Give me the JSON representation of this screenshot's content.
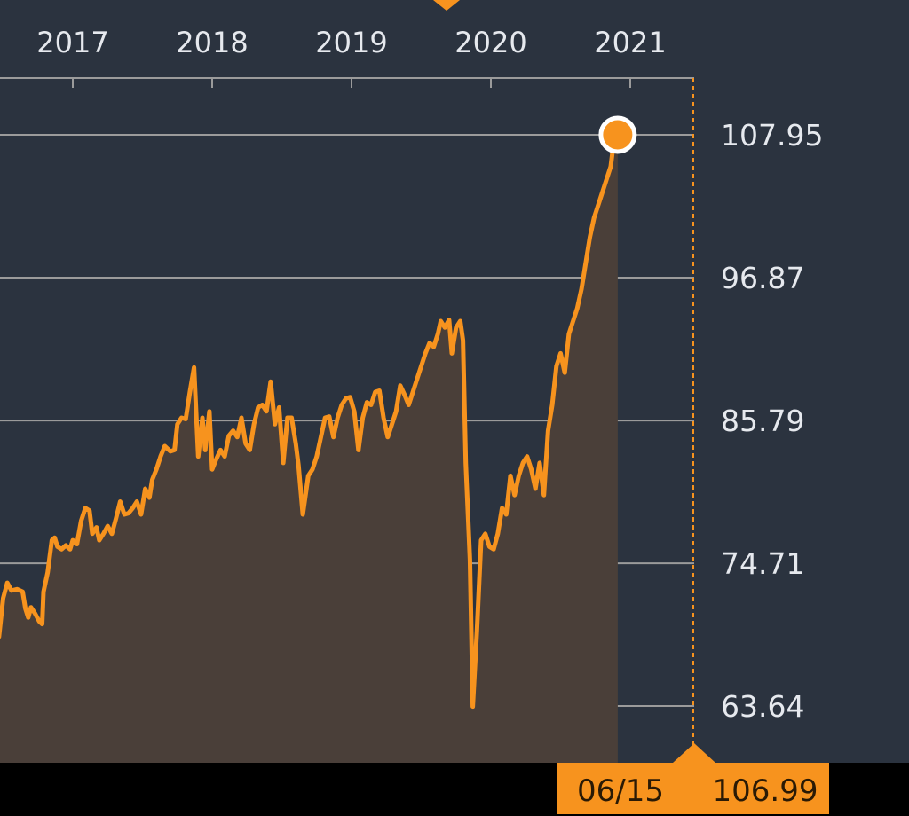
{
  "chart_data": {
    "type": "area",
    "title": "",
    "xlabel": "",
    "ylabel": "",
    "x_ticks": [
      "2017",
      "2018",
      "2019",
      "2020",
      "2021"
    ],
    "y_ticks": [
      "63.64",
      "74.71",
      "85.79",
      "96.87",
      "107.95"
    ],
    "ylim": [
      63.64,
      107.95
    ],
    "grid": true,
    "colors": {
      "background": "#2b333f",
      "line": "#f7931e",
      "fill": "#4a3f39",
      "grid": "#9b9b9b",
      "footer": "#000000",
      "callout": "#f7931e"
    },
    "series": [
      {
        "values": [
          [
            2016.47,
            69.0
          ],
          [
            2016.5,
            72.0
          ],
          [
            2016.53,
            73.2
          ],
          [
            2016.56,
            72.6
          ],
          [
            2016.6,
            72.7
          ],
          [
            2016.64,
            72.5
          ],
          [
            2016.66,
            71.2
          ],
          [
            2016.68,
            70.5
          ],
          [
            2016.7,
            71.3
          ],
          [
            2016.73,
            70.8
          ],
          [
            2016.76,
            70.2
          ],
          [
            2016.78,
            70.0
          ],
          [
            2016.79,
            72.5
          ],
          [
            2016.82,
            74.0
          ],
          [
            2016.85,
            76.5
          ],
          [
            2016.87,
            76.7
          ],
          [
            2016.89,
            76.0
          ],
          [
            2016.92,
            75.8
          ],
          [
            2016.95,
            76.1
          ],
          [
            2016.98,
            75.8
          ],
          [
            2017.0,
            76.5
          ],
          [
            2017.03,
            76.2
          ],
          [
            2017.06,
            78.0
          ],
          [
            2017.09,
            79.0
          ],
          [
            2017.12,
            78.8
          ],
          [
            2017.14,
            77.0
          ],
          [
            2017.17,
            77.5
          ],
          [
            2017.19,
            76.5
          ],
          [
            2017.22,
            77.0
          ],
          [
            2017.25,
            77.6
          ],
          [
            2017.28,
            77.0
          ],
          [
            2017.31,
            78.2
          ],
          [
            2017.34,
            79.5
          ],
          [
            2017.37,
            78.5
          ],
          [
            2017.4,
            78.6
          ],
          [
            2017.43,
            79.0
          ],
          [
            2017.46,
            79.5
          ],
          [
            2017.49,
            78.5
          ],
          [
            2017.52,
            80.5
          ],
          [
            2017.55,
            79.8
          ],
          [
            2017.57,
            81.2
          ],
          [
            2017.6,
            82.0
          ],
          [
            2017.63,
            83.0
          ],
          [
            2017.66,
            83.8
          ],
          [
            2017.7,
            83.4
          ],
          [
            2017.73,
            83.5
          ],
          [
            2017.75,
            85.5
          ],
          [
            2017.78,
            86.0
          ],
          [
            2017.81,
            85.9
          ],
          [
            2017.84,
            88.0
          ],
          [
            2017.87,
            89.9
          ],
          [
            2017.9,
            83.0
          ],
          [
            2017.93,
            86.0
          ],
          [
            2017.95,
            83.5
          ],
          [
            2017.98,
            86.5
          ],
          [
            2018.0,
            82.0
          ],
          [
            2018.03,
            82.8
          ],
          [
            2018.06,
            83.5
          ],
          [
            2018.09,
            83.0
          ],
          [
            2018.12,
            84.6
          ],
          [
            2018.15,
            85.0
          ],
          [
            2018.18,
            84.5
          ],
          [
            2018.21,
            86.0
          ],
          [
            2018.24,
            84.0
          ],
          [
            2018.27,
            83.5
          ],
          [
            2018.3,
            85.5
          ],
          [
            2018.33,
            86.8
          ],
          [
            2018.36,
            87.0
          ],
          [
            2018.39,
            86.5
          ],
          [
            2018.42,
            88.8
          ],
          [
            2018.45,
            85.5
          ],
          [
            2018.48,
            86.8
          ],
          [
            2018.51,
            82.5
          ],
          [
            2018.54,
            86.0
          ],
          [
            2018.57,
            86.0
          ],
          [
            2018.6,
            84.0
          ],
          [
            2018.62,
            82.3
          ],
          [
            2018.65,
            78.5
          ],
          [
            2018.69,
            81.5
          ],
          [
            2018.72,
            82.0
          ],
          [
            2018.75,
            83.0
          ],
          [
            2018.78,
            84.5
          ],
          [
            2018.81,
            86.0
          ],
          [
            2018.84,
            86.1
          ],
          [
            2018.87,
            84.5
          ],
          [
            2018.9,
            86.0
          ],
          [
            2018.93,
            87.0
          ],
          [
            2018.96,
            87.5
          ],
          [
            2018.99,
            87.6
          ],
          [
            2019.02,
            86.5
          ],
          [
            2019.05,
            83.5
          ],
          [
            2019.08,
            86.0
          ],
          [
            2019.11,
            87.2
          ],
          [
            2019.14,
            87.0
          ],
          [
            2019.17,
            88.0
          ],
          [
            2019.2,
            88.1
          ],
          [
            2019.23,
            86.0
          ],
          [
            2019.26,
            84.5
          ],
          [
            2019.29,
            85.5
          ],
          [
            2019.32,
            86.5
          ],
          [
            2019.35,
            88.5
          ],
          [
            2019.38,
            87.8
          ],
          [
            2019.41,
            87.0
          ],
          [
            2019.44,
            88.0
          ],
          [
            2019.47,
            89.0
          ],
          [
            2019.5,
            90.0
          ],
          [
            2019.53,
            91.0
          ],
          [
            2019.56,
            91.8
          ],
          [
            2019.59,
            91.5
          ],
          [
            2019.62,
            92.5
          ],
          [
            2019.64,
            93.5
          ],
          [
            2019.67,
            93.0
          ],
          [
            2019.7,
            93.6
          ],
          [
            2019.72,
            91.0
          ],
          [
            2019.75,
            93.0
          ],
          [
            2019.78,
            93.5
          ],
          [
            2019.8,
            92.0
          ],
          [
            2019.82,
            82.5
          ],
          [
            2019.85,
            75.0
          ],
          [
            2019.87,
            63.6
          ],
          [
            2019.9,
            69.5
          ],
          [
            2019.93,
            76.5
          ],
          [
            2019.96,
            77.0
          ],
          [
            2019.99,
            76.0
          ],
          [
            2020.02,
            75.8
          ],
          [
            2020.05,
            77.0
          ],
          [
            2020.08,
            79.0
          ],
          [
            2020.11,
            78.5
          ],
          [
            2020.14,
            81.5
          ],
          [
            2020.17,
            80.0
          ],
          [
            2020.2,
            81.5
          ],
          [
            2020.23,
            82.5
          ],
          [
            2020.26,
            83.0
          ],
          [
            2020.29,
            82.0
          ],
          [
            2020.32,
            80.5
          ],
          [
            2020.35,
            82.5
          ],
          [
            2020.38,
            80.0
          ],
          [
            2020.41,
            85.0
          ],
          [
            2020.44,
            87.0
          ],
          [
            2020.47,
            90.0
          ],
          [
            2020.5,
            91.0
          ],
          [
            2020.53,
            89.5
          ],
          [
            2020.56,
            92.5
          ],
          [
            2020.59,
            93.5
          ],
          [
            2020.62,
            94.5
          ],
          [
            2020.65,
            96.0
          ],
          [
            2020.68,
            98.0
          ],
          [
            2020.71,
            100.0
          ],
          [
            2020.74,
            101.5
          ],
          [
            2020.77,
            102.5
          ],
          [
            2020.8,
            103.5
          ],
          [
            2020.83,
            104.5
          ],
          [
            2020.86,
            105.5
          ],
          [
            2020.88,
            107.3
          ],
          [
            2020.91,
            107.95
          ]
        ]
      }
    ],
    "last_point": {
      "date": "06/15",
      "value": "106.99"
    }
  }
}
